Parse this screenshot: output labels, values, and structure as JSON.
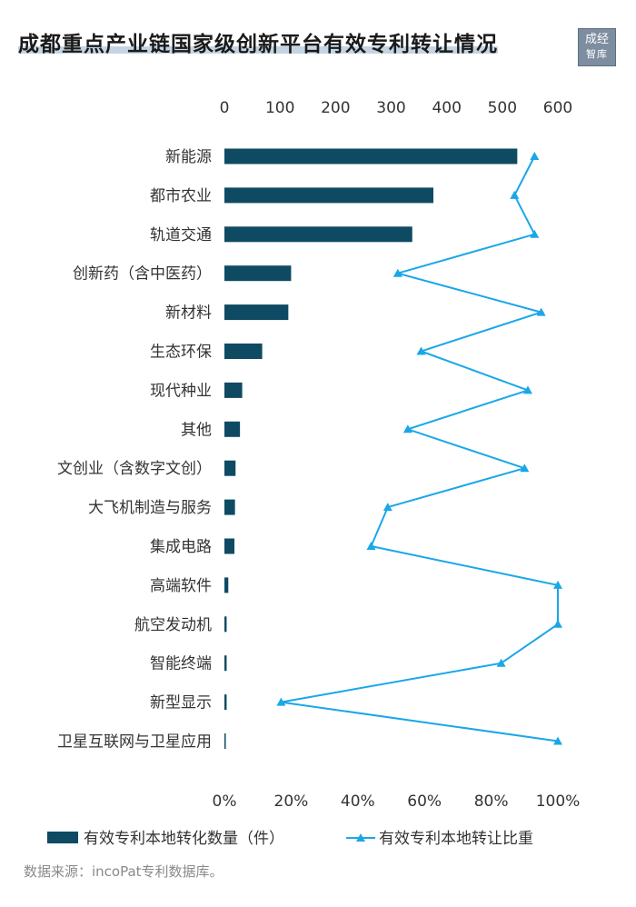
{
  "title": "成都重点产业链国家级创新平台有效专利转让情况",
  "logo": {
    "line1": "成经",
    "line2": "智库"
  },
  "source": "数据来源：incoPat专利数据库。",
  "colors": {
    "bar": "#0f4a63",
    "line": "#1aa7e8",
    "text": "#333333"
  },
  "chart_data": {
    "type": "bar",
    "orientation": "horizontal",
    "categories": [
      "新能源",
      "都市农业",
      "轨道交通",
      "创新药（含中医药）",
      "新材料",
      "生态环保",
      "现代种业",
      "其他",
      "文创业（含数字文创）",
      "大飞机制造与服务",
      "集成电路",
      "高端软件",
      "航空发动机",
      "智能终端",
      "新型显示",
      "卫星互联网与卫星应用"
    ],
    "top_axis": {
      "ticks": [
        "0",
        "100",
        "200",
        "300",
        "400",
        "500",
        "600"
      ],
      "range": [
        0,
        600
      ]
    },
    "bottom_axis": {
      "ticks": [
        "0%",
        "20%",
        "40%",
        "60%",
        "80%",
        "100%"
      ],
      "range": [
        0,
        100
      ]
    },
    "series": [
      {
        "name": "有效专利本地转化数量（件）",
        "type": "bar",
        "axis": "top",
        "values": [
          527,
          376,
          338,
          120,
          115,
          68,
          32,
          28,
          20,
          19,
          18,
          7,
          4,
          4,
          4,
          1
        ]
      },
      {
        "name": "有效专利本地转让比重",
        "type": "line",
        "axis": "bottom",
        "values": [
          93,
          87,
          93,
          52,
          95,
          59,
          91,
          55,
          90,
          49,
          44,
          100,
          100,
          83,
          17,
          100
        ]
      }
    ],
    "grid": false,
    "legend_position": "bottom"
  }
}
